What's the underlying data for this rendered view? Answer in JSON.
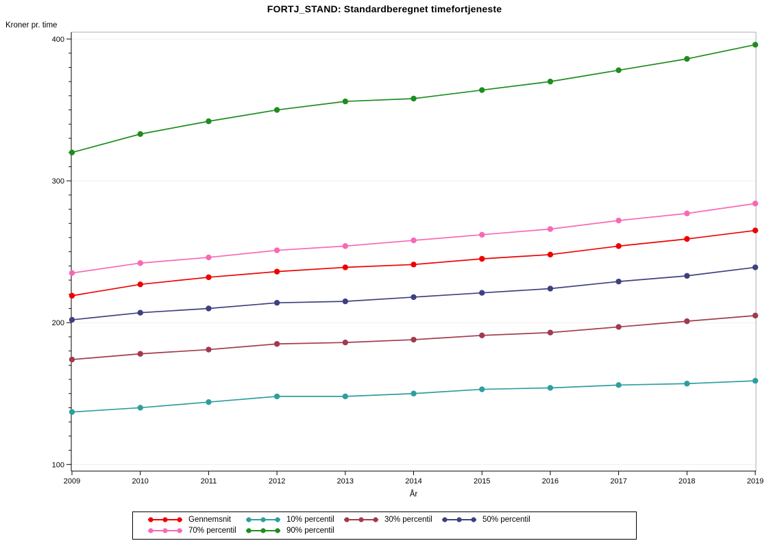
{
  "window": {
    "background": "#ffffff"
  },
  "chart_data": {
    "type": "line",
    "title": "FORTJ_STAND: Standardberegnet timefortjeneste",
    "ylabel": "Kroner pr. time",
    "xlabel": "År",
    "x": [
      2009,
      2010,
      2011,
      2012,
      2013,
      2014,
      2015,
      2016,
      2017,
      2018,
      2019
    ],
    "series": [
      {
        "name": "Gennemsnit",
        "color": "#ee0000",
        "values": [
          219,
          227,
          232,
          236,
          239,
          241,
          245,
          248,
          254,
          259,
          265
        ]
      },
      {
        "name": "10% percentil",
        "color": "#2e9e9e",
        "values": [
          137,
          140,
          144,
          148,
          148,
          150,
          153,
          154,
          156,
          157,
          159
        ]
      },
      {
        "name": "30% percentil",
        "color": "#a13a4c",
        "values": [
          174,
          178,
          181,
          185,
          186,
          188,
          191,
          193,
          197,
          201,
          205
        ]
      },
      {
        "name": "50% percentil",
        "color": "#3e4080",
        "values": [
          202,
          207,
          210,
          214,
          215,
          218,
          221,
          224,
          229,
          233,
          239
        ]
      },
      {
        "name": "70% percentil",
        "color": "#f868b6",
        "values": [
          235,
          242,
          246,
          251,
          254,
          258,
          262,
          266,
          272,
          277,
          284
        ]
      },
      {
        "name": "90% percentil",
        "color": "#1e8c1e",
        "values": [
          320,
          333,
          342,
          350,
          356,
          358,
          364,
          370,
          378,
          386,
          396
        ]
      }
    ],
    "yticks": [
      100,
      200,
      300,
      400
    ],
    "y_minor_tick_step": 10,
    "ylim": [
      95,
      405
    ],
    "grid": true,
    "gridline_color": "#ededed",
    "frame_color": "#ababab",
    "axis_color": "#000000",
    "legend_position": "bottom"
  }
}
